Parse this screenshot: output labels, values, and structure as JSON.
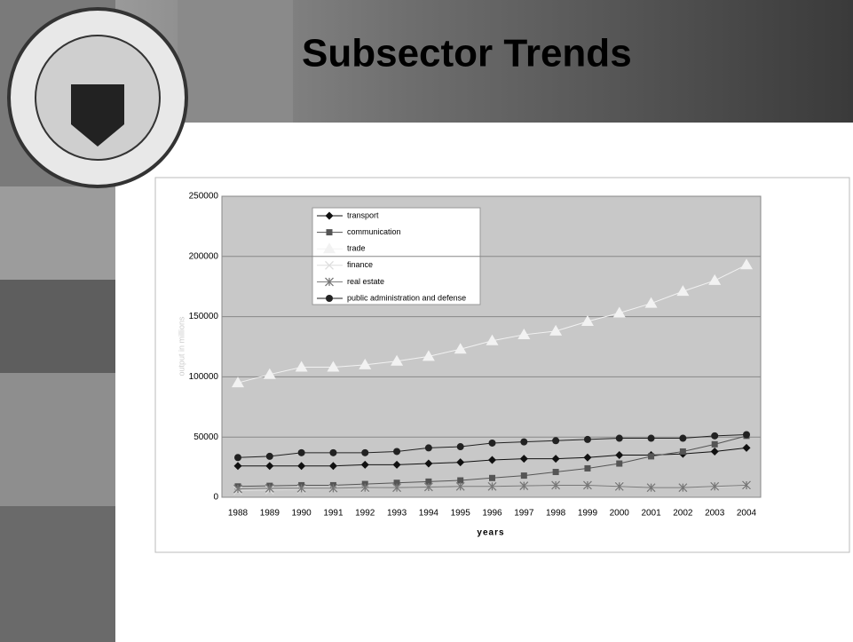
{
  "chart_data": {
    "type": "line",
    "title": "Subsector Trends",
    "x_label": "years",
    "y_label": "output in millions",
    "categories": [
      "1988",
      "1989",
      "1990",
      "1991",
      "1992",
      "1993",
      "1994",
      "1995",
      "1996",
      "1997",
      "1998",
      "1999",
      "2000",
      "2001",
      "2002",
      "2003",
      "2004"
    ],
    "ylim": [
      0,
      250000
    ],
    "yticks": [
      0,
      50000,
      100000,
      150000,
      200000,
      250000
    ],
    "grid": true,
    "series": [
      {
        "name": "transport",
        "color": "#111111",
        "marker": "diamond",
        "values": [
          26000,
          26000,
          26000,
          26000,
          27000,
          27000,
          28000,
          29000,
          31000,
          32000,
          32000,
          33000,
          35000,
          35000,
          36000,
          38000,
          41000
        ]
      },
      {
        "name": "communication",
        "color": "#555555",
        "marker": "square",
        "values": [
          9000,
          9500,
          10000,
          10000,
          11000,
          12000,
          13000,
          14000,
          16000,
          18000,
          21000,
          24000,
          28000,
          34000,
          38000,
          44000,
          51000
        ]
      },
      {
        "name": "trade",
        "color": "#f2f2f2",
        "marker": "triangle",
        "values": [
          95000,
          102000,
          108000,
          108000,
          110000,
          113000,
          117000,
          123000,
          130000,
          135000,
          138000,
          146000,
          153000,
          161000,
          171000,
          180000,
          193000
        ]
      },
      {
        "name": "finance",
        "color": "#dddddd",
        "marker": "x",
        "values": [
          5500,
          6000,
          6500,
          7000,
          7500,
          8000,
          8500,
          9000,
          9000,
          9500,
          10000,
          10000,
          9500,
          8000,
          8000,
          8500,
          9500
        ]
      },
      {
        "name": "real estate",
        "color": "#777777",
        "marker": "star",
        "values": [
          7000,
          7500,
          7500,
          7500,
          8000,
          8000,
          8500,
          9000,
          9000,
          9500,
          10000,
          10000,
          9000,
          8000,
          8000,
          9000,
          10000
        ]
      },
      {
        "name": "public administration and defense",
        "color": "#222222",
        "marker": "circle",
        "values": [
          33000,
          34000,
          37000,
          37000,
          37000,
          38000,
          41000,
          42000,
          45000,
          46000,
          47000,
          48000,
          49000,
          49000,
          49000,
          51000,
          52000
        ]
      }
    ]
  }
}
